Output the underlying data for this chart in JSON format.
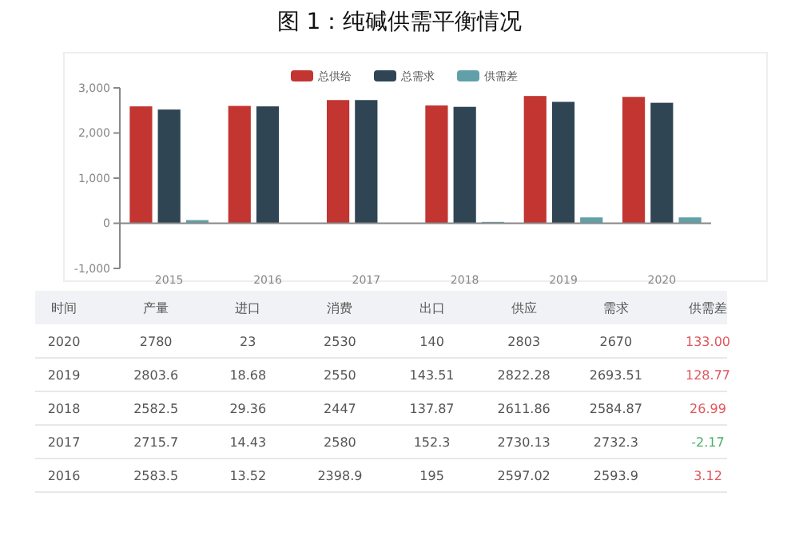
{
  "chart_data": [
    {
      "type": "bar",
      "title": "图 1：纯碱供需平衡情况",
      "categories": [
        "2015",
        "2016",
        "2017",
        "2018",
        "2019",
        "2020"
      ],
      "ylim": [
        -1000,
        3000
      ],
      "yticks": [
        {
          "value": -1000,
          "label": "-1,000"
        },
        0,
        {
          "value": 1000,
          "label": "1,000"
        },
        {
          "value": 2000,
          "label": "2,000"
        },
        {
          "value": 3000,
          "label": "3,000"
        }
      ],
      "legend": "top",
      "series": [
        {
          "name": "总供给",
          "color": "#c23531",
          "values": [
            2590,
            2600,
            2730,
            2610,
            2820,
            2800
          ]
        },
        {
          "name": "总需求",
          "color": "#2f4554",
          "values": [
            2520,
            2590,
            2730,
            2580,
            2690,
            2670
          ]
        },
        {
          "name": "供需差",
          "color": "#61a0a8",
          "values": [
            70,
            0,
            0,
            30,
            130,
            130
          ]
        }
      ]
    },
    {
      "type": "heatmap",
      "ylabel": "时间",
      "categories": [
        "产量",
        "进口",
        "消费",
        "出口",
        "供应",
        "需求",
        "供需差"
      ],
      "y_categories": [
        "2020",
        "2019",
        "2018",
        "2017",
        "2016"
      ],
      "cells": [
        [
          2780,
          23,
          2530,
          140,
          2803,
          2670,
          133
        ],
        [
          2803.6,
          18.68,
          2550,
          143.51,
          2822.28,
          2693.51,
          128.77
        ],
        [
          2582.5,
          29.36,
          2447,
          137.87,
          2611.86,
          2584.87,
          26.99
        ],
        [
          2715.7,
          14.43,
          2580,
          152.3,
          2730.13,
          2732.3,
          -2.17
        ],
        [
          2583.5,
          13.52,
          2398.9,
          195,
          2597.02,
          2593.9,
          3.12
        ]
      ],
      "cell_labels": [
        [
          "2780",
          "23",
          "2530",
          "140",
          "2803",
          "2670",
          "133.00"
        ],
        [
          "2803.6",
          "18.68",
          "2550",
          "143.51",
          "2822.28",
          "2693.51",
          "128.77"
        ],
        [
          "2582.5",
          "29.36",
          "2447",
          "137.87",
          "2611.86",
          "2584.87",
          "26.99"
        ],
        [
          "2715.7",
          "14.43",
          "2580",
          "152.3",
          "2730.13",
          "2732.3",
          "-2.17"
        ],
        [
          "2583.5",
          "13.52",
          "2398.9",
          "195",
          "2597.02",
          "2593.9",
          "3.12"
        ]
      ]
    }
  ]
}
